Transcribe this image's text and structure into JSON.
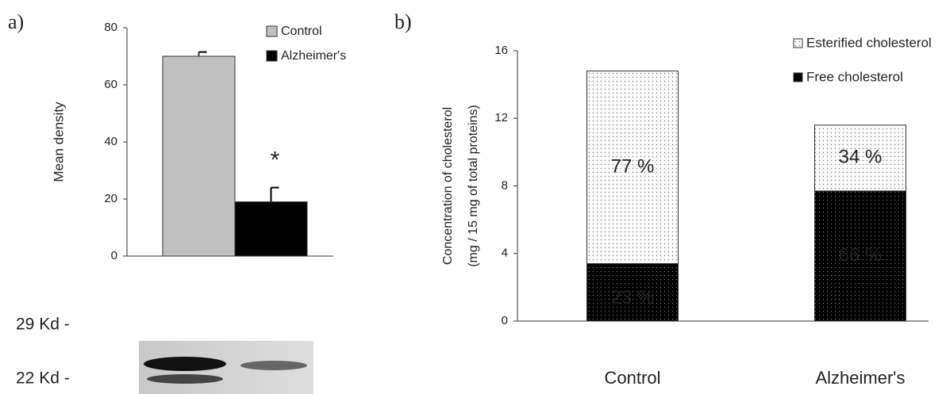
{
  "chart_data": [
    {
      "type": "bar",
      "panel_label": "a)",
      "ylabel": "Mean density",
      "categories": [
        null
      ],
      "series": [
        {
          "name": "Control",
          "color": "#c0c0c0",
          "values": [
            70
          ],
          "errors": [
            1.5
          ]
        },
        {
          "name": "Alzheimer's",
          "color": "#000000",
          "values": [
            19
          ],
          "errors": [
            5
          ]
        }
      ],
      "annotation": "*",
      "ylim": [
        0,
        80
      ],
      "yticks": [
        0,
        20,
        40,
        60,
        80
      ],
      "grid": false,
      "blot_labels": [
        "29 Kd  -",
        "22 Kd  -"
      ]
    },
    {
      "type": "stacked_bar",
      "panel_label": "b)",
      "ylabel": [
        "Concentration of cholesterol",
        "(mg / 15 mg of total proteins)"
      ],
      "categories": [
        "Control",
        "Alzheimer's"
      ],
      "series": [
        {
          "name": "Free cholesterol",
          "color": "#000000",
          "values": [
            3.4,
            7.7
          ],
          "percent_labels": [
            "23 %",
            "66 %"
          ]
        },
        {
          "name": "Esterified cholesterol",
          "color": "#f4f4f4",
          "values": [
            11.4,
            3.9
          ],
          "percent_labels": [
            "77 %",
            "34 %"
          ]
        }
      ],
      "ylim": [
        0,
        16
      ],
      "yticks": [
        0,
        4,
        8,
        12,
        16
      ],
      "grid": false
    }
  ]
}
